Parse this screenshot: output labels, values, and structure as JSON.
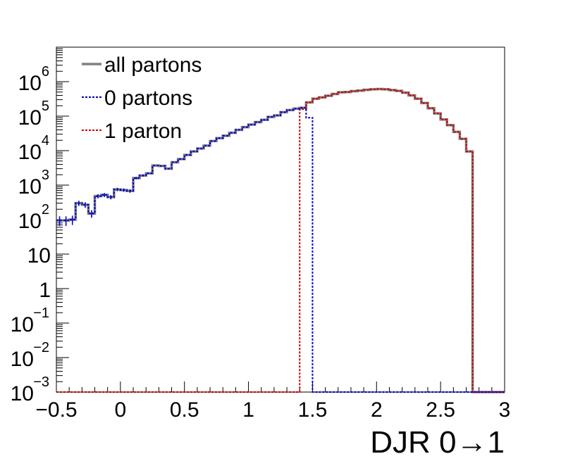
{
  "chart_data": {
    "type": "line",
    "title": "",
    "xlabel": "DJR 0→1",
    "ylabel": "",
    "xlim": [
      -0.5,
      3.0
    ],
    "ylim": [
      0.001,
      10000000
    ],
    "ylog": true,
    "grid": false,
    "legend_position": "top-left",
    "x_ticks": [
      {
        "value": -0.5,
        "label": "−0.5"
      },
      {
        "value": 0,
        "label": "0"
      },
      {
        "value": 0.5,
        "label": "0.5"
      },
      {
        "value": 1,
        "label": "1"
      },
      {
        "value": 1.5,
        "label": "1.5"
      },
      {
        "value": 2,
        "label": "2"
      },
      {
        "value": 2.5,
        "label": "2.5"
      },
      {
        "value": 3,
        "label": "3"
      }
    ],
    "y_ticks": [
      {
        "value": 0.001,
        "base": "10",
        "exp": "−3"
      },
      {
        "value": 0.01,
        "base": "10",
        "exp": "−2"
      },
      {
        "value": 0.1,
        "base": "10",
        "exp": "−1"
      },
      {
        "value": 1,
        "base": "1",
        "exp": ""
      },
      {
        "value": 10,
        "base": "10",
        "exp": ""
      },
      {
        "value": 100,
        "base": "10",
        "exp": "2"
      },
      {
        "value": 1000,
        "base": "10",
        "exp": "3"
      },
      {
        "value": 10000,
        "base": "10",
        "exp": "4"
      },
      {
        "value": 100000,
        "base": "10",
        "exp": "5"
      },
      {
        "value": 1000000,
        "base": "10",
        "exp": "6"
      }
    ],
    "bin_edges_start": -0.5,
    "bin_width": 0.05,
    "series": [
      {
        "name": "all partons",
        "color": "#808080",
        "style": "solid",
        "values": [
          95,
          95,
          100,
          300,
          270,
          150,
          480,
          520,
          450,
          750,
          720,
          680,
          1600,
          1900,
          2200,
          3700,
          3600,
          3000,
          4600,
          5700,
          7500,
          9500,
          11500,
          14000,
          19000,
          23000,
          27000,
          33000,
          40000,
          48000,
          57000,
          67000,
          78000,
          95000,
          105000,
          130000,
          150000,
          165000,
          175000,
          250000,
          320000,
          350000,
          390000,
          440000,
          490000,
          500000,
          530000,
          550000,
          580000,
          600000,
          610000,
          600000,
          570000,
          540000,
          480000,
          400000,
          320000,
          240000,
          170000,
          120000,
          80000,
          55000,
          35000,
          22000,
          9500
        ]
      },
      {
        "name": "0 partons",
        "color": "#0000cc",
        "style": "dotted",
        "values": [
          95,
          95,
          100,
          300,
          270,
          150,
          480,
          520,
          450,
          750,
          720,
          680,
          1600,
          1900,
          2200,
          3700,
          3600,
          3000,
          4600,
          5700,
          7500,
          9500,
          11500,
          14000,
          19000,
          23000,
          27000,
          33000,
          40000,
          48000,
          57000,
          67000,
          78000,
          95000,
          105000,
          130000,
          150000,
          165000,
          175000,
          90000
        ]
      },
      {
        "name": "1 parton",
        "color": "#cc0000",
        "style": "dotted",
        "values": [
          null,
          null,
          null,
          null,
          null,
          null,
          null,
          null,
          null,
          null,
          null,
          null,
          null,
          null,
          null,
          null,
          null,
          null,
          null,
          null,
          null,
          null,
          null,
          null,
          null,
          null,
          null,
          null,
          null,
          null,
          null,
          null,
          null,
          null,
          null,
          null,
          null,
          null,
          160000,
          250000,
          320000,
          350000,
          390000,
          440000,
          490000,
          500000,
          530000,
          550000,
          580000,
          600000,
          610000,
          600000,
          570000,
          540000,
          480000,
          400000,
          320000,
          240000,
          170000,
          120000,
          80000,
          55000,
          35000,
          22000,
          9500
        ]
      }
    ],
    "legend": [
      {
        "label": "all partons",
        "color": "#808080",
        "style": "solid"
      },
      {
        "label": "0 partons",
        "color": "#0000cc",
        "style": "dotted"
      },
      {
        "label": "1 parton",
        "color": "#cc0000",
        "style": "dotted"
      }
    ]
  }
}
